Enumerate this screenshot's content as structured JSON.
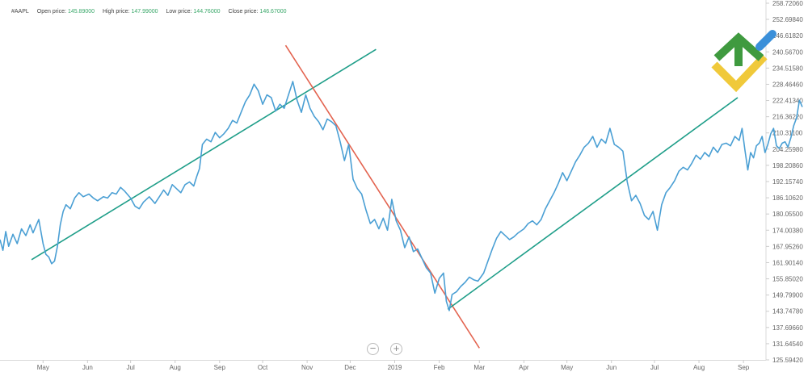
{
  "symbol": "#AAPL",
  "ohlc": {
    "open_label": "Open price:",
    "open": "145.89000",
    "high_label": "High price:",
    "high": "147.99000",
    "low_label": "Low price:",
    "low": "144.76000",
    "close_label": "Close price:",
    "close": "146.67000"
  },
  "zoom": {
    "out_icon": "−",
    "in_icon": "+"
  },
  "colors": {
    "price_line": "#4a9fd4",
    "support_trend": "#1f9e89",
    "resistance_trend": "#e3634f",
    "logo_green": "#3f9a3f",
    "logo_yellow": "#f0c93a",
    "logo_blue": "#3a8fd9"
  },
  "logo": {
    "icon": "brand-logo-icon"
  },
  "chart_data": {
    "type": "line",
    "y_ticks": [
      "258.72060",
      "252.69840",
      "246.61820",
      "240.56700",
      "234.51580",
      "228.46460",
      "222.41340",
      "216.36220",
      "210.31100",
      "204.25980",
      "198.20860",
      "192.15740",
      "186.10620",
      "180.05500",
      "174.00380",
      "167.95260",
      "161.90140",
      "155.85020",
      "149.79900",
      "143.74780",
      "137.69660",
      "131.64540",
      "125.59420"
    ],
    "x_ticks": [
      "May",
      "Jun",
      "Jul",
      "Aug",
      "Sep",
      "Oct",
      "Nov",
      "Dec",
      "2019",
      "Feb",
      "Mar",
      "Apr",
      "May",
      "Jun",
      "Jul",
      "Aug",
      "Sep"
    ],
    "x_range": [
      "2018-04-01",
      "2019-09-15"
    ],
    "ylim": [
      125.5942,
      258.7206
    ],
    "grid": false,
    "series": [
      {
        "values": [
          [
            "2018-04-01",
            170.5
          ],
          [
            "2018-04-03",
            166.5
          ],
          [
            "2018-04-05",
            173.5
          ],
          [
            "2018-04-07",
            168.0
          ],
          [
            "2018-04-10",
            172.5
          ],
          [
            "2018-04-13",
            169.0
          ],
          [
            "2018-04-16",
            174.5
          ],
          [
            "2018-04-19",
            172.0
          ],
          [
            "2018-04-22",
            176.0
          ],
          [
            "2018-04-24",
            173.0
          ],
          [
            "2018-04-26",
            175.5
          ],
          [
            "2018-04-28",
            178.0
          ],
          [
            "2018-05-01",
            169.0
          ],
          [
            "2018-05-03",
            165.0
          ],
          [
            "2018-05-05",
            164.0
          ],
          [
            "2018-05-07",
            161.5
          ],
          [
            "2018-05-09",
            162.5
          ],
          [
            "2018-05-11",
            168.0
          ],
          [
            "2018-05-13",
            176.0
          ],
          [
            "2018-05-15",
            181.0
          ],
          [
            "2018-05-17",
            183.5
          ],
          [
            "2018-05-20",
            182.0
          ],
          [
            "2018-05-23",
            186.0
          ],
          [
            "2018-05-26",
            188.0
          ],
          [
            "2018-05-29",
            186.5
          ],
          [
            "2018-06-02",
            187.5
          ],
          [
            "2018-06-05",
            186.0
          ],
          [
            "2018-06-08",
            185.0
          ],
          [
            "2018-06-12",
            186.5
          ],
          [
            "2018-06-15",
            186.0
          ],
          [
            "2018-06-18",
            188.0
          ],
          [
            "2018-06-21",
            187.5
          ],
          [
            "2018-06-24",
            190.0
          ],
          [
            "2018-06-27",
            188.5
          ],
          [
            "2018-07-01",
            186.0
          ],
          [
            "2018-07-04",
            183.0
          ],
          [
            "2018-07-07",
            182.0
          ],
          [
            "2018-07-10",
            184.5
          ],
          [
            "2018-07-14",
            186.5
          ],
          [
            "2018-07-18",
            184.0
          ],
          [
            "2018-07-21",
            186.5
          ],
          [
            "2018-07-24",
            189.0
          ],
          [
            "2018-07-27",
            187.0
          ],
          [
            "2018-07-30",
            191.0
          ],
          [
            "2018-08-02",
            189.5
          ],
          [
            "2018-08-05",
            188.0
          ],
          [
            "2018-08-08",
            191.0
          ],
          [
            "2018-08-11",
            192.0
          ],
          [
            "2018-08-14",
            190.5
          ],
          [
            "2018-08-16",
            194.0
          ],
          [
            "2018-08-18",
            197.0
          ],
          [
            "2018-08-20",
            206.0
          ],
          [
            "2018-08-23",
            208.0
          ],
          [
            "2018-08-26",
            207.0
          ],
          [
            "2018-08-29",
            210.5
          ],
          [
            "2018-09-01",
            208.5
          ],
          [
            "2018-09-04",
            210.0
          ],
          [
            "2018-09-07",
            212.0
          ],
          [
            "2018-09-10",
            215.0
          ],
          [
            "2018-09-13",
            214.0
          ],
          [
            "2018-09-16",
            218.0
          ],
          [
            "2018-09-19",
            222.0
          ],
          [
            "2018-09-22",
            224.5
          ],
          [
            "2018-09-25",
            228.5
          ],
          [
            "2018-09-28",
            226.0
          ],
          [
            "2018-10-01",
            221.0
          ],
          [
            "2018-10-04",
            224.5
          ],
          [
            "2018-10-07",
            223.5
          ],
          [
            "2018-10-10",
            218.5
          ],
          [
            "2018-10-13",
            221.0
          ],
          [
            "2018-10-16",
            219.5
          ],
          [
            "2018-10-19",
            224.5
          ],
          [
            "2018-10-22",
            229.5
          ],
          [
            "2018-10-25",
            222.5
          ],
          [
            "2018-10-28",
            218.0
          ],
          [
            "2018-10-31",
            224.5
          ],
          [
            "2018-11-03",
            219.5
          ],
          [
            "2018-11-06",
            216.5
          ],
          [
            "2018-11-09",
            214.5
          ],
          [
            "2018-11-12",
            211.5
          ],
          [
            "2018-11-15",
            215.5
          ],
          [
            "2018-11-18",
            214.5
          ],
          [
            "2018-11-21",
            213.0
          ],
          [
            "2018-11-24",
            207.0
          ],
          [
            "2018-11-27",
            200.0
          ],
          [
            "2018-11-30",
            206.0
          ],
          [
            "2018-12-03",
            193.0
          ],
          [
            "2018-12-06",
            189.5
          ],
          [
            "2018-12-09",
            187.5
          ],
          [
            "2018-12-12",
            181.5
          ],
          [
            "2018-12-15",
            176.5
          ],
          [
            "2018-12-18",
            178.0
          ],
          [
            "2018-12-21",
            174.5
          ],
          [
            "2018-12-24",
            178.5
          ],
          [
            "2018-12-27",
            174.0
          ],
          [
            "2018-12-30",
            185.5
          ],
          [
            "2019-01-02",
            177.5
          ],
          [
            "2019-01-05",
            174.0
          ],
          [
            "2019-01-08",
            167.5
          ],
          [
            "2019-01-11",
            171.5
          ],
          [
            "2019-01-14",
            166.0
          ],
          [
            "2019-01-17",
            167.0
          ],
          [
            "2019-01-20",
            163.5
          ],
          [
            "2019-01-23",
            160.0
          ],
          [
            "2019-01-26",
            158.0
          ],
          [
            "2019-01-29",
            150.5
          ],
          [
            "2019-02-01",
            156.0
          ],
          [
            "2019-02-04",
            158.0
          ],
          [
            "2019-02-06",
            147.5
          ],
          [
            "2019-02-08",
            144.0
          ],
          [
            "2019-02-10",
            150.0
          ],
          [
            "2019-02-13",
            151.0
          ],
          [
            "2019-02-16",
            153.0
          ],
          [
            "2019-02-19",
            154.5
          ],
          [
            "2019-02-22",
            156.5
          ],
          [
            "2019-02-25",
            155.5
          ],
          [
            "2019-02-28",
            155.0
          ],
          [
            "2019-03-04",
            158.0
          ],
          [
            "2019-03-07",
            162.5
          ],
          [
            "2019-03-10",
            167.0
          ],
          [
            "2019-03-13",
            171.0
          ],
          [
            "2019-03-16",
            173.5
          ],
          [
            "2019-03-19",
            172.0
          ],
          [
            "2019-03-22",
            170.5
          ],
          [
            "2019-03-25",
            171.5
          ],
          [
            "2019-03-28",
            173.0
          ],
          [
            "2019-04-01",
            174.5
          ],
          [
            "2019-04-04",
            176.5
          ],
          [
            "2019-04-07",
            177.5
          ],
          [
            "2019-04-10",
            176.0
          ],
          [
            "2019-04-13",
            178.0
          ],
          [
            "2019-04-16",
            182.0
          ],
          [
            "2019-04-19",
            185.0
          ],
          [
            "2019-04-22",
            188.0
          ],
          [
            "2019-04-25",
            191.5
          ],
          [
            "2019-04-28",
            195.5
          ],
          [
            "2019-05-01",
            192.5
          ],
          [
            "2019-05-04",
            196.0
          ],
          [
            "2019-05-07",
            199.5
          ],
          [
            "2019-05-10",
            202.0
          ],
          [
            "2019-05-13",
            205.0
          ],
          [
            "2019-05-16",
            206.5
          ],
          [
            "2019-05-19",
            209.0
          ],
          [
            "2019-05-22",
            205.0
          ],
          [
            "2019-05-25",
            208.0
          ],
          [
            "2019-05-28",
            206.5
          ],
          [
            "2019-05-31",
            212.0
          ],
          [
            "2019-06-03",
            206.0
          ],
          [
            "2019-06-06",
            205.0
          ],
          [
            "2019-06-09",
            203.5
          ],
          [
            "2019-06-12",
            192.0
          ],
          [
            "2019-06-15",
            185.0
          ],
          [
            "2019-06-18",
            187.0
          ],
          [
            "2019-06-21",
            184.0
          ],
          [
            "2019-06-24",
            179.5
          ],
          [
            "2019-06-27",
            178.0
          ],
          [
            "2019-06-30",
            181.0
          ],
          [
            "2019-07-03",
            174.0
          ],
          [
            "2019-07-06",
            183.5
          ],
          [
            "2019-07-09",
            188.0
          ],
          [
            "2019-07-12",
            190.0
          ],
          [
            "2019-07-15",
            192.5
          ],
          [
            "2019-07-18",
            196.0
          ],
          [
            "2019-07-21",
            197.5
          ],
          [
            "2019-07-24",
            196.5
          ],
          [
            "2019-07-27",
            199.0
          ],
          [
            "2019-07-30",
            202.0
          ],
          [
            "2019-08-02",
            200.5
          ],
          [
            "2019-08-05",
            203.0
          ],
          [
            "2019-08-08",
            201.5
          ],
          [
            "2019-08-11",
            205.0
          ],
          [
            "2019-08-14",
            203.0
          ],
          [
            "2019-08-17",
            206.0
          ],
          [
            "2019-08-20",
            206.5
          ],
          [
            "2019-08-23",
            205.5
          ],
          [
            "2019-08-26",
            209.0
          ],
          [
            "2019-08-29",
            207.5
          ],
          [
            "2019-08-31",
            212.0
          ],
          [
            "2019-09-02",
            204.0
          ],
          [
            "2019-09-04",
            196.5
          ],
          [
            "2019-09-06",
            203.0
          ],
          [
            "2019-09-08",
            201.0
          ],
          [
            "2019-09-10",
            205.5
          ],
          [
            "2019-09-12",
            206.5
          ],
          [
            "2019-09-14",
            209.0
          ],
          [
            "2019-09-16",
            203.0
          ],
          [
            "2019-09-18",
            206.0
          ],
          [
            "2019-09-20",
            210.0
          ],
          [
            "2019-09-22",
            212.0
          ],
          [
            "2019-09-24",
            205.5
          ],
          [
            "2019-09-26",
            204.5
          ],
          [
            "2019-09-28",
            206.5
          ],
          [
            "2019-09-30",
            207.0
          ],
          [
            "2019-10-02",
            205.0
          ],
          [
            "2019-10-04",
            208.5
          ],
          [
            "2019-10-06",
            213.0
          ],
          [
            "2019-10-08",
            216.0
          ],
          [
            "2019-10-10",
            222.5
          ],
          [
            "2019-10-12",
            220.0
          ]
        ]
      }
    ],
    "trend_lines": [
      {
        "kind": "support",
        "color": "#1f9e89",
        "from": [
          "2018-04-23",
          163.0
        ],
        "to": [
          "2018-12-19",
          241.5
        ]
      },
      {
        "kind": "resistance",
        "color": "#e3634f",
        "from": [
          "2018-10-17",
          243.0
        ],
        "to": [
          "2019-02-29",
          130.0
        ]
      },
      {
        "kind": "support",
        "color": "#1f9e89",
        "from": [
          "2019-02-07",
          144.5
        ],
        "to": [
          "2019-08-28",
          223.5
        ]
      }
    ]
  }
}
